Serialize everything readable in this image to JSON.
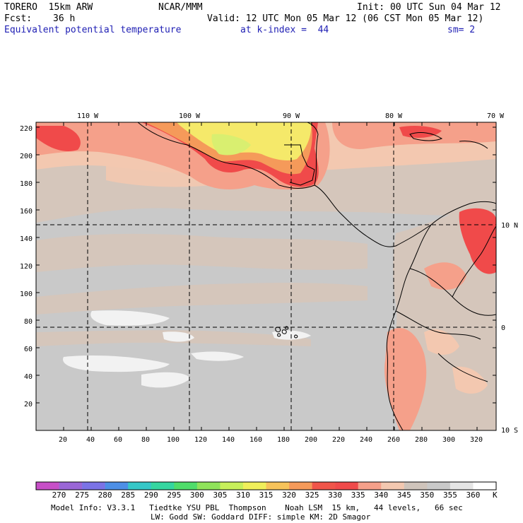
{
  "header": {
    "model": "TORERO  15km ARW",
    "org": "NCAR/MMM",
    "init": "Init: 00 UTC Sun 04 Mar 12",
    "fcst_label": "Fcst:",
    "fcst_value": "36 h",
    "valid": "Valid: 12 UTC Mon 05 Mar 12 (06 CST Mon 05 Mar 12)",
    "field": "Equivalent potential temperature",
    "level": "at k-index =  44",
    "smooth": "sm= 2"
  },
  "map": {
    "top_lon_labels": [
      "110 W",
      "100 W",
      "90 W",
      "80 W",
      "70 W"
    ],
    "right_lat_labels": [
      "10 N",
      "0",
      "10 S"
    ],
    "left_ticks": [
      "220",
      "200",
      "180",
      "160",
      "140",
      "120",
      "100",
      "80",
      "60",
      "40",
      "20"
    ],
    "bottom_ticks": [
      "20",
      "40",
      "60",
      "80",
      "100",
      "120",
      "140",
      "160",
      "180",
      "200",
      "220",
      "240",
      "260",
      "280",
      "300",
      "320"
    ]
  },
  "colorbar": {
    "labels": [
      "270",
      "275",
      "280",
      "285",
      "290",
      "295",
      "300",
      "305",
      "310",
      "315",
      "320",
      "325",
      "330",
      "335",
      "340",
      "345",
      "350",
      "355",
      "360"
    ],
    "unit": "K",
    "colors": [
      "#c74fc7",
      "#9a66d6",
      "#7b73e6",
      "#4d8fe6",
      "#35c7c7",
      "#35d6a0",
      "#4fdd6a",
      "#8fe35a",
      "#c7ef5a",
      "#f0ef5a",
      "#f7c35a",
      "#f59a5a",
      "#f0554a",
      "#f04a4a",
      "#f5a08a",
      "#f3c8b0",
      "#cfc4bb",
      "#c9c9c9",
      "#e5e5e5",
      "#ffffff"
    ]
  },
  "footer": {
    "line1": "Model Info: V3.3.1   Tiedtke YSU PBL  Thompson    Noah LSM  15 km,   44 levels,   66 sec",
    "line2": "LW: Godd SW: Goddard DIFF: simple KM: 2D Smagor"
  }
}
